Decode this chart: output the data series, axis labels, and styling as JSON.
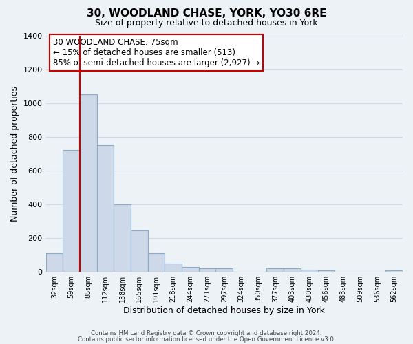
{
  "title": "30, WOODLAND CHASE, YORK, YO30 6RE",
  "subtitle": "Size of property relative to detached houses in York",
  "xlabel": "Distribution of detached houses by size in York",
  "ylabel": "Number of detached properties",
  "bar_labels": [
    "32sqm",
    "59sqm",
    "85sqm",
    "112sqm",
    "138sqm",
    "165sqm",
    "191sqm",
    "218sqm",
    "244sqm",
    "271sqm",
    "297sqm",
    "324sqm",
    "350sqm",
    "377sqm",
    "403sqm",
    "430sqm",
    "456sqm",
    "483sqm",
    "509sqm",
    "536sqm",
    "562sqm"
  ],
  "bar_values": [
    107,
    720,
    1050,
    748,
    400,
    245,
    110,
    48,
    28,
    20,
    20,
    0,
    0,
    18,
    18,
    13,
    8,
    0,
    0,
    0,
    5
  ],
  "bar_color": "#cdd8e8",
  "bar_edge_color": "#8aaac8",
  "vline_color": "#cc0000",
  "ylim": [
    0,
    1400
  ],
  "yticks": [
    0,
    200,
    400,
    600,
    800,
    1000,
    1200,
    1400
  ],
  "annotation_text": "30 WOODLAND CHASE: 75sqm\n← 15% of detached houses are smaller (513)\n85% of semi-detached houses are larger (2,927) →",
  "annotation_box_color": "#ffffff",
  "annotation_box_edge": "#cc0000",
  "footer1": "Contains HM Land Registry data © Crown copyright and database right 2024.",
  "footer2": "Contains public sector information licensed under the Open Government Licence v3.0.",
  "grid_color": "#d0d8e4",
  "background_color": "#edf2f7",
  "fig_width": 6.0,
  "fig_height": 5.0,
  "dpi": 100
}
